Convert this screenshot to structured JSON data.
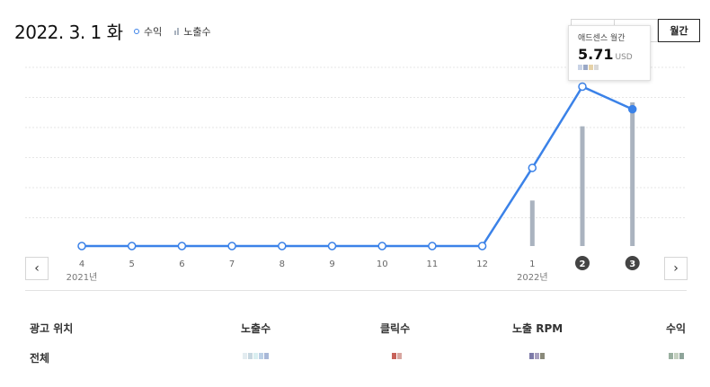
{
  "header": {
    "date": "2022. 3. 1 화",
    "legend_revenue": "수익",
    "legend_impressions": "노출수"
  },
  "period_buttons": [
    "",
    "",
    "월간"
  ],
  "tooltip": {
    "label": "애드센스 월간",
    "value": "5.71",
    "unit": "USD"
  },
  "chart_data": {
    "type": "line",
    "categories": [
      "4",
      "5",
      "6",
      "7",
      "8",
      "9",
      "10",
      "11",
      "12",
      "1",
      "2",
      "3"
    ],
    "year_labels": [
      {
        "index": 0,
        "label": "2021년"
      },
      {
        "index": 9,
        "label": "2022년"
      }
    ],
    "highlighted_categories": [
      "2",
      "3"
    ],
    "series": [
      {
        "name": "수익",
        "type": "line",
        "values": [
          0,
          0,
          0,
          0,
          0,
          0,
          0,
          0,
          0,
          2.8,
          5.71,
          4.9
        ]
      },
      {
        "name": "노출수",
        "type": "bar",
        "values": [
          0,
          0,
          0,
          0,
          0,
          0,
          0,
          0,
          0,
          0.38,
          1.0,
          1.2
        ]
      }
    ],
    "ylim": [
      0,
      6.4
    ],
    "grid": true,
    "colors": {
      "line": "#3b82e8",
      "bar": "#aab3bf",
      "grid": "#e6e6e6",
      "highlight": "#444444"
    }
  },
  "nav": {
    "prev_icon": "chevron-left-icon",
    "next_icon": "chevron-right-icon"
  },
  "table": {
    "headers": [
      "광고 위치",
      "노출수",
      "클릭수",
      "노출 RPM",
      "수익"
    ],
    "rows": [
      {
        "label": "전체"
      }
    ]
  }
}
